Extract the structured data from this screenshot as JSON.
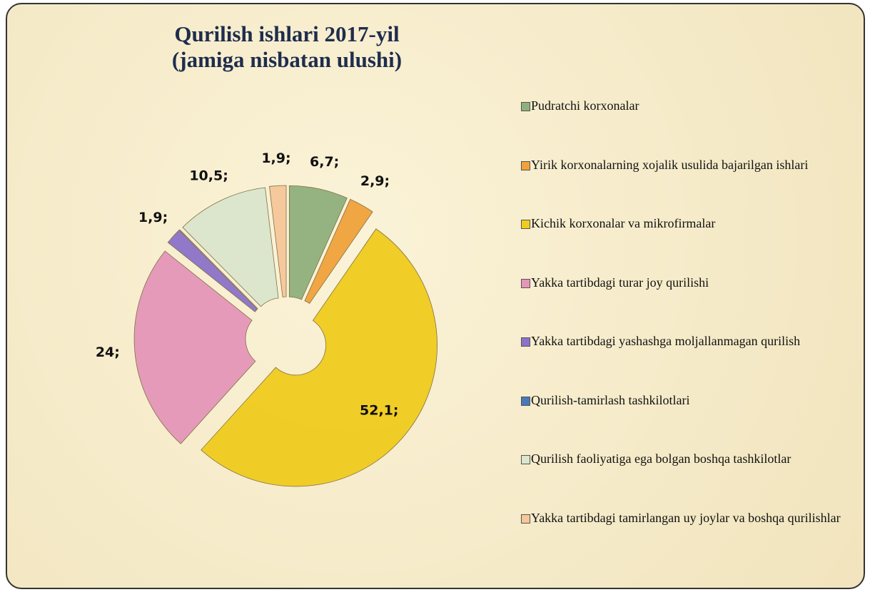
{
  "chart_data": {
    "type": "pie",
    "title": [
      "Qurilish ishlari 2017-yil",
      "(jamiga nisbatan ulushi)"
    ],
    "categories": [
      "Pudratchi korxonalar",
      "Yirik korxonalarning xojalik usulida bajarilgan ishlari",
      "Kichik korxonalar va mikrofirmalar",
      "Yakka tartibdagi turar joy qurilishi",
      "Yakka tartibdagi yashashga moljallanmagan qurilish",
      "Qurilish-tamirlash tashkilotlari",
      "Qurilish faoliyatiga ega bolgan boshqa tashkilotlar",
      "Yakka tartibdagi tamirlangan uy joylar va boshqa qurilishlar"
    ],
    "values": [
      6.7,
      2.9,
      52.1,
      24,
      1.9,
      0,
      10.5,
      1.9
    ],
    "value_labels": [
      "6,7;",
      "2,9;",
      "52,1;",
      "24;",
      "1,9;",
      null,
      "10,5;",
      "1,9;"
    ],
    "colors": [
      "#8fb07c",
      "#f0a23c",
      "#f0cc1e",
      "#e596b8",
      "#8c72c8",
      "#4a78b8",
      "#dbe6cc",
      "#f6c79a"
    ],
    "legend": "right"
  }
}
